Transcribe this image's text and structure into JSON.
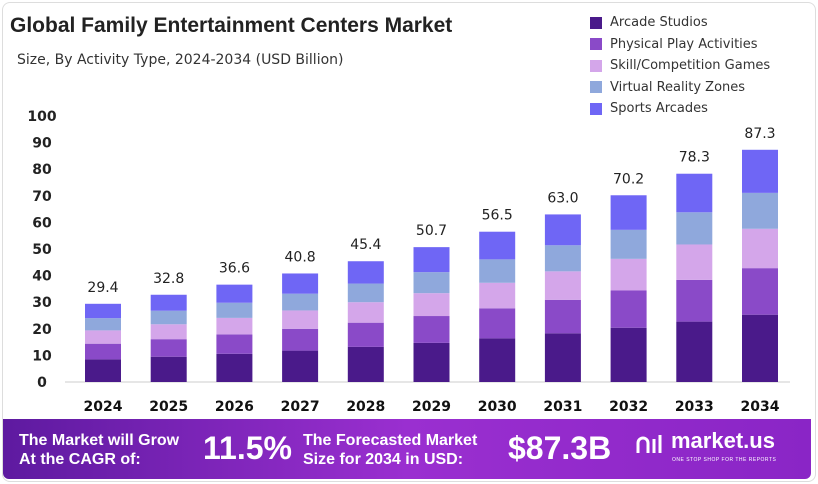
{
  "chart_data": {
    "type": "bar",
    "stacked": true,
    "title": "Global Family Entertainment Centers Market",
    "subtitle": "Size, By Activity Type, 2024-2034 (USD Billion)",
    "categories": [
      "2024",
      "2025",
      "2026",
      "2027",
      "2028",
      "2029",
      "2030",
      "2031",
      "2032",
      "2033",
      "2034"
    ],
    "ylim": [
      0,
      100
    ],
    "yticks": [
      0,
      10,
      20,
      30,
      40,
      50,
      60,
      70,
      80,
      90,
      100
    ],
    "grid": false,
    "legend_position": "top-right",
    "totals": [
      "29.4",
      "32.8",
      "36.6",
      "40.8",
      "45.4",
      "50.7",
      "56.5",
      "63.0",
      "70.2",
      "78.3",
      "87.3"
    ],
    "series": [
      {
        "name": "Arcade Studios",
        "color": "#4a1a8a",
        "values": [
          8.5,
          9.5,
          10.6,
          11.8,
          13.2,
          14.7,
          16.4,
          18.3,
          20.4,
          22.7,
          25.3
        ]
      },
      {
        "name": "Physical Play Activities",
        "color": "#8a4ac8",
        "values": [
          5.9,
          6.6,
          7.3,
          8.2,
          9.1,
          10.1,
          11.3,
          12.6,
          14.0,
          15.7,
          17.5
        ]
      },
      {
        "name": "Skill/Competition Games",
        "color": "#d4a6ea",
        "values": [
          5.0,
          5.6,
          6.2,
          6.9,
          7.7,
          8.6,
          9.6,
          10.7,
          11.9,
          13.3,
          14.8
        ]
      },
      {
        "name": "Virtual Reality Zones",
        "color": "#8fa8dc",
        "values": [
          4.6,
          5.1,
          5.7,
          6.3,
          7.0,
          7.9,
          8.8,
          9.8,
          10.9,
          12.1,
          13.5
        ]
      },
      {
        "name": "Sports Arcades",
        "color": "#6f66f5",
        "values": [
          5.4,
          6.0,
          6.8,
          7.6,
          8.4,
          9.4,
          10.4,
          11.6,
          13.0,
          14.5,
          16.2
        ]
      }
    ]
  },
  "footer": {
    "cagr_label_1": "The Market will Grow",
    "cagr_label_2": "At the CAGR of:",
    "cagr_value": "11.5%",
    "forecast_label_1": "The Forecasted Market",
    "forecast_label_2": "Size for 2034 in USD:",
    "forecast_value": "$87.3B",
    "brand": "market.us",
    "brand_tagline": "ONE STOP SHOP FOR THE REPORTS"
  }
}
